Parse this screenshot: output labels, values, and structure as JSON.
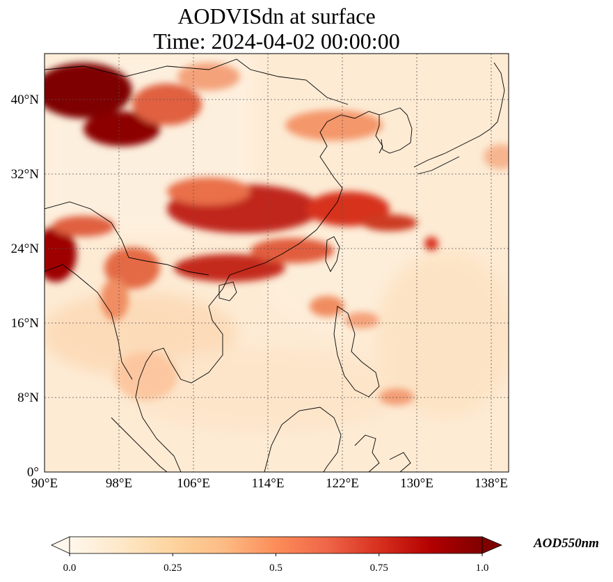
{
  "title": {
    "line1": "AODVISdn at surface",
    "line2": "Time: 2024-04-02 00:00:00"
  },
  "axes": {
    "x_ticks": [
      "90°E",
      "98°E",
      "106°E",
      "114°E",
      "122°E",
      "130°E",
      "138°E"
    ],
    "y_ticks": [
      "0°",
      "8°N",
      "16°N",
      "24°N",
      "32°N",
      "40°N"
    ],
    "x_range": [
      90,
      140
    ],
    "y_range": [
      0,
      45
    ],
    "gridlines": true
  },
  "colorbar": {
    "label": "AOD550nm",
    "ticks": [
      "0.0",
      "0.25",
      "0.5",
      "0.75",
      "1.0"
    ],
    "range": [
      0,
      1
    ],
    "colormap": "OrRd",
    "extend": "both",
    "colors": [
      "#fff7ec",
      "#fee8c8",
      "#fdd49e",
      "#fdbb84",
      "#fc8d59",
      "#ef6548",
      "#d7301f",
      "#b30000",
      "#7f0000"
    ]
  }
}
